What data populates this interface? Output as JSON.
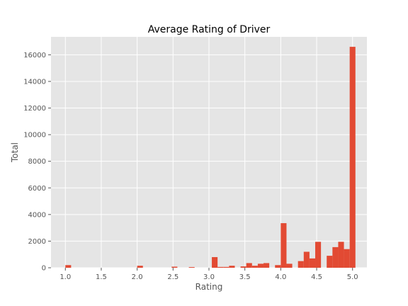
{
  "chart_data": {
    "type": "bar",
    "title": "Average Rating of Driver",
    "xlabel": "Rating",
    "ylabel": "Total",
    "xlim": [
      0.8,
      5.2
    ],
    "ylim": [
      0,
      17350
    ],
    "xticks": [
      "1.0",
      "1.5",
      "2.0",
      "2.5",
      "3.0",
      "3.5",
      "4.0",
      "4.5",
      "5.0"
    ],
    "yticks": [
      "0",
      "2000",
      "4000",
      "6000",
      "8000",
      "10000",
      "12000",
      "14000",
      "16000"
    ],
    "grid": true,
    "bin_width": 0.08,
    "bins": [
      {
        "x": 1.0,
        "value": 200
      },
      {
        "x": 2.0,
        "value": 150
      },
      {
        "x": 2.48,
        "value": 80
      },
      {
        "x": 2.72,
        "value": 50
      },
      {
        "x": 3.04,
        "value": 800
      },
      {
        "x": 3.12,
        "value": 60
      },
      {
        "x": 3.2,
        "value": 60
      },
      {
        "x": 3.28,
        "value": 150
      },
      {
        "x": 3.44,
        "value": 100
      },
      {
        "x": 3.52,
        "value": 350
      },
      {
        "x": 3.6,
        "value": 150
      },
      {
        "x": 3.68,
        "value": 300
      },
      {
        "x": 3.76,
        "value": 350
      },
      {
        "x": 3.92,
        "value": 200
      },
      {
        "x": 4.0,
        "value": 3350
      },
      {
        "x": 4.08,
        "value": 300
      },
      {
        "x": 4.24,
        "value": 500
      },
      {
        "x": 4.32,
        "value": 1200
      },
      {
        "x": 4.4,
        "value": 700
      },
      {
        "x": 4.48,
        "value": 1950
      },
      {
        "x": 4.64,
        "value": 900
      },
      {
        "x": 4.72,
        "value": 1550
      },
      {
        "x": 4.8,
        "value": 1950
      },
      {
        "x": 4.88,
        "value": 1400
      },
      {
        "x": 4.96,
        "value": 16600
      }
    ],
    "colors": {
      "bar": "#E24A33",
      "plot_bg": "#E5E5E5",
      "grid": "#FFFFFF"
    }
  }
}
